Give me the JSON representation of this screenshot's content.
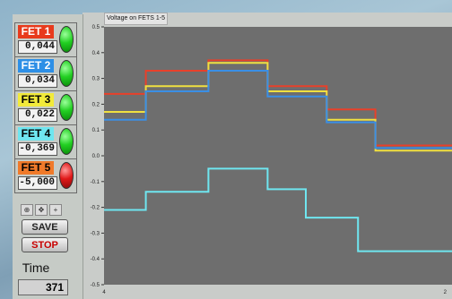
{
  "chart_title": "Voltage on FETS 1-5",
  "fets": [
    {
      "label": "FET 1",
      "value": "0,044",
      "label_bg": "#e83a1c",
      "label_fg": "#ffffff",
      "led": "green"
    },
    {
      "label": "FET 2",
      "value": "0,034",
      "label_bg": "#2d8fe6",
      "label_fg": "#ffffff",
      "led": "green"
    },
    {
      "label": "FET 3",
      "value": "0,022",
      "label_bg": "#f2ea3a",
      "label_fg": "#000000",
      "led": "green"
    },
    {
      "label": "FET 4",
      "value": "-0,369",
      "label_bg": "#6fe6f0",
      "label_fg": "#000000",
      "led": "green"
    },
    {
      "label": "FET 5",
      "value": "-5,000",
      "label_bg": "#f07a2a",
      "label_fg": "#000000",
      "led": "red"
    }
  ],
  "buttons": {
    "save": "SAVE",
    "stop": "STOP"
  },
  "time": {
    "label": "Time",
    "value": "371"
  },
  "chart_data": {
    "type": "line",
    "title": "Voltage on FETS 1-5",
    "ylim": [
      -0.5,
      0.5
    ],
    "y_ticks": [
      "0.5",
      "0.4",
      "0.3",
      "0.2",
      "0.1",
      "0.0",
      "-0.1",
      "-0.2",
      "-0.3",
      "-0.4",
      "-0.5"
    ],
    "x_tick_first": "4",
    "x_tick_last": "2",
    "xlim": [
      0,
      100
    ],
    "series": [
      {
        "color": "#e8402a",
        "points": [
          [
            0,
            0.24
          ],
          [
            12,
            0.24
          ],
          [
            12,
            0.33
          ],
          [
            30,
            0.33
          ],
          [
            30,
            0.37
          ],
          [
            47,
            0.37
          ],
          [
            47,
            0.27
          ],
          [
            64,
            0.27
          ],
          [
            64,
            0.18
          ],
          [
            78,
            0.18
          ],
          [
            78,
            0.04
          ],
          [
            100,
            0.04
          ]
        ]
      },
      {
        "color": "#f0e040",
        "points": [
          [
            0,
            0.17
          ],
          [
            12,
            0.17
          ],
          [
            12,
            0.27
          ],
          [
            30,
            0.27
          ],
          [
            30,
            0.36
          ],
          [
            47,
            0.36
          ],
          [
            47,
            0.25
          ],
          [
            64,
            0.25
          ],
          [
            64,
            0.14
          ],
          [
            78,
            0.14
          ],
          [
            78,
            0.02
          ],
          [
            100,
            0.02
          ]
        ]
      },
      {
        "color": "#3a8fe6",
        "points": [
          [
            0,
            0.14
          ],
          [
            12,
            0.14
          ],
          [
            12,
            0.25
          ],
          [
            30,
            0.25
          ],
          [
            30,
            0.33
          ],
          [
            47,
            0.33
          ],
          [
            47,
            0.23
          ],
          [
            64,
            0.23
          ],
          [
            64,
            0.13
          ],
          [
            78,
            0.13
          ],
          [
            78,
            0.03
          ],
          [
            100,
            0.03
          ]
        ]
      },
      {
        "color": "#6fe6f0",
        "points": [
          [
            0,
            -0.21
          ],
          [
            12,
            -0.21
          ],
          [
            12,
            -0.14
          ],
          [
            30,
            -0.14
          ],
          [
            30,
            -0.05
          ],
          [
            47,
            -0.05
          ],
          [
            47,
            -0.13
          ],
          [
            58,
            -0.13
          ],
          [
            58,
            -0.24
          ],
          [
            73,
            -0.24
          ],
          [
            73,
            -0.37
          ],
          [
            100,
            -0.37
          ]
        ]
      }
    ]
  }
}
